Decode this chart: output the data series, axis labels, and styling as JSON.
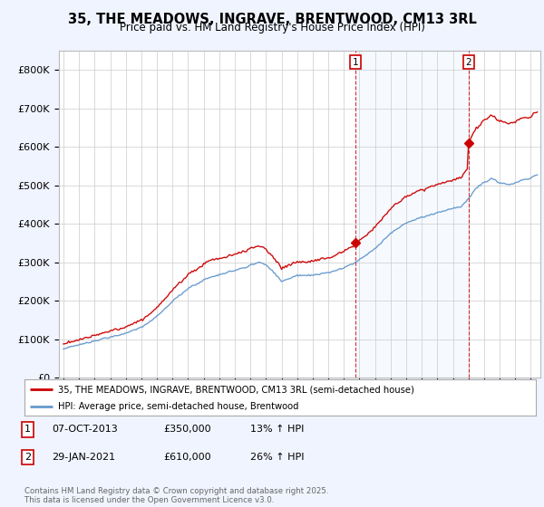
{
  "title": "35, THE MEADOWS, INGRAVE, BRENTWOOD, CM13 3RL",
  "subtitle": "Price paid vs. HM Land Registry's House Price Index (HPI)",
  "legend_line1": "35, THE MEADOWS, INGRAVE, BRENTWOOD, CM13 3RL (semi-detached house)",
  "legend_line2": "HPI: Average price, semi-detached house, Brentwood",
  "annotation1_date": "07-OCT-2013",
  "annotation1_price": "£350,000",
  "annotation1_hpi": "13% ↑ HPI",
  "annotation2_date": "29-JAN-2021",
  "annotation2_price": "£610,000",
  "annotation2_hpi": "26% ↑ HPI",
  "footer": "Contains HM Land Registry data © Crown copyright and database right 2025.\nThis data is licensed under the Open Government Licence v3.0.",
  "hpi_color": "#6699cc",
  "price_color": "#cc0000",
  "shade_color": "#ddeeff",
  "background_color": "#f0f4ff",
  "plot_bg_color": "#ffffff",
  "ylim": [
    0,
    850000
  ],
  "yticks": [
    0,
    100000,
    200000,
    300000,
    400000,
    500000,
    600000,
    700000,
    800000
  ],
  "ytick_labels": [
    "£0",
    "£100K",
    "£200K",
    "£300K",
    "£400K",
    "£500K",
    "£600K",
    "£700K",
    "£800K"
  ]
}
